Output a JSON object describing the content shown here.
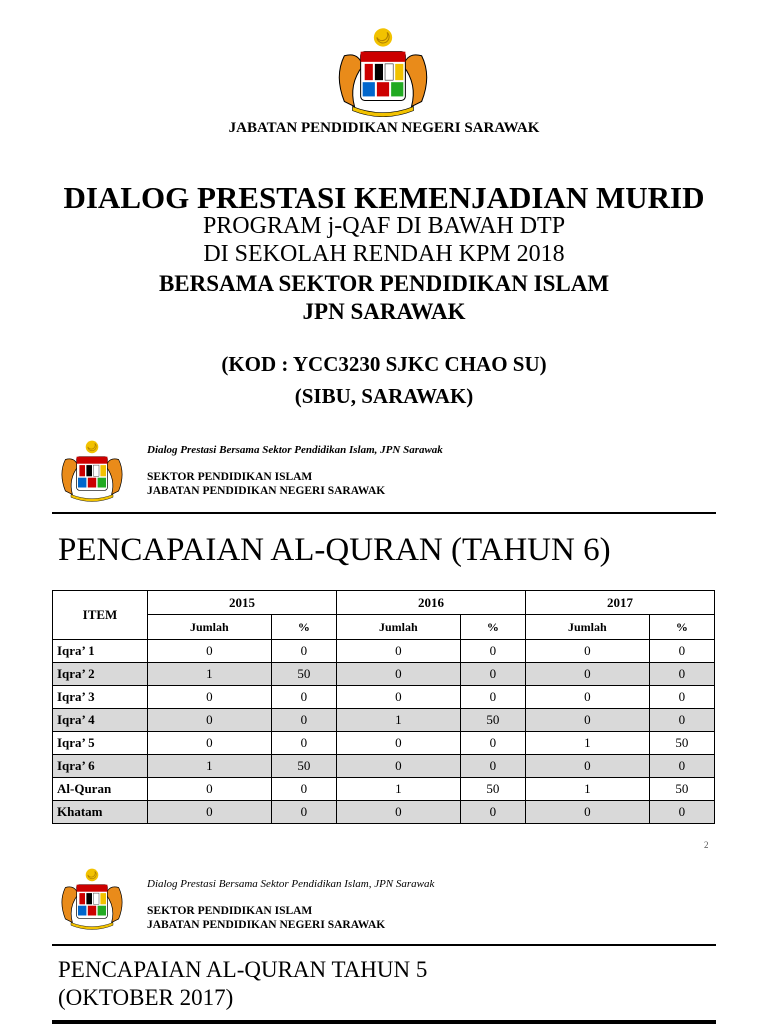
{
  "slide1": {
    "department": "JABATAN PENDIDIKAN NEGERI SARAWAK",
    "title": "DIALOG PRESTASI KEMENJADIAN MURID",
    "program_lines": [
      "PROGRAM j-QAF DI BAWAH DTP",
      "DI SEKOLAH RENDAH KPM 2018"
    ],
    "partner_lines": [
      "BERSAMA SEKTOR PENDIDIKAN ISLAM",
      "JPN SARAWAK"
    ],
    "school_lines": [
      "(KOD : YCC3230 SJKC CHAO SU)",
      "(SIBU, SARAWAK)"
    ]
  },
  "slide2": {
    "header": {
      "subtitle": "Dialog Prestasi Bersama Sektor Pendidikan Islam, JPN Sarawak",
      "org_lines": [
        "SEKTOR PENDIDIKAN ISLAM",
        "JABATAN PENDIDIKAN NEGERI SARAWAK"
      ]
    },
    "title": "PENCAPAIAN AL-QURAN (TAHUN 6)",
    "table": {
      "item_header": "ITEM",
      "years": [
        "2015",
        "2016",
        "2017"
      ],
      "sub_headers": [
        "Jumlah",
        "%"
      ],
      "rows": [
        [
          "Iqra’ 1",
          0,
          0,
          0,
          0,
          0,
          0
        ],
        [
          "Iqra’ 2",
          1,
          50,
          0,
          0,
          0,
          0
        ],
        [
          "Iqra’ 3",
          0,
          0,
          0,
          0,
          0,
          0
        ],
        [
          "Iqra’ 4",
          0,
          0,
          1,
          50,
          0,
          0
        ],
        [
          "Iqra’ 5",
          0,
          0,
          0,
          0,
          1,
          50
        ],
        [
          "Iqra’ 6",
          1,
          50,
          0,
          0,
          0,
          0
        ],
        [
          "Al-Quran",
          0,
          0,
          1,
          50,
          1,
          50
        ],
        [
          "Khatam",
          0,
          0,
          0,
          0,
          0,
          0
        ]
      ]
    },
    "page_number": "2"
  },
  "slide3": {
    "header": {
      "subtitle": "Dialog Prestasi Bersama Sektor Pendidikan Islam, JPN Sarawak",
      "org_lines": [
        "SEKTOR PENDIDIKAN ISLAM",
        "JABATAN PENDIDIKAN NEGERI SARAWAK"
      ]
    },
    "title_lines": [
      "PENCAPAIAN AL-QURAN TAHUN 5",
      "(OKTOBER 2017)"
    ]
  }
}
